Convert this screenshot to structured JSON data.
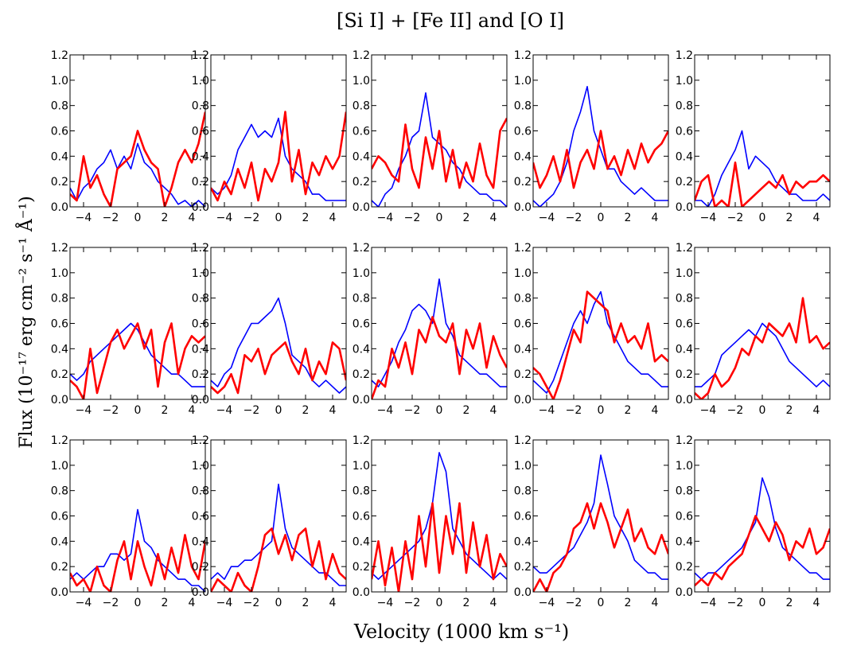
{
  "figure": {
    "title": "[Si I] + [Fe II] and [O I]",
    "xlabel": "Velocity (1000 km s⁻¹)",
    "ylabel": "Flux (10⁻¹⁷ erg cm⁻² s⁻¹ Å⁻¹)"
  },
  "chart_data": {
    "type": "line",
    "layout": "3 rows x 5 columns grid of panels",
    "xlim": [
      -5,
      5
    ],
    "ylim": [
      0,
      1.2
    ],
    "xticks": [
      -4,
      -2,
      0,
      2,
      4
    ],
    "yticks": [
      0.0,
      0.2,
      0.4,
      0.6,
      0.8,
      1.0,
      1.2
    ],
    "x": [
      -5,
      -4.5,
      -4,
      -3.5,
      -3,
      -2.5,
      -2,
      -1.5,
      -1,
      -0.5,
      0,
      0.5,
      1,
      1.5,
      2,
      2.5,
      3,
      3.5,
      4,
      4.5,
      5
    ],
    "series_colors": {
      "blue": "#0000ff",
      "red": "#ff0000"
    },
    "panels": [
      {
        "row": 1,
        "col": 1,
        "series": [
          {
            "color": "blue",
            "values": [
              0.15,
              0.05,
              0.15,
              0.2,
              0.3,
              0.35,
              0.45,
              0.3,
              0.4,
              0.3,
              0.5,
              0.35,
              0.3,
              0.2,
              0.15,
              0.1,
              0.02,
              0.05,
              0.0,
              0.05,
              0.0
            ]
          },
          {
            "color": "red",
            "values": [
              0.1,
              0.05,
              0.4,
              0.15,
              0.25,
              0.1,
              0.0,
              0.3,
              0.35,
              0.4,
              0.6,
              0.45,
              0.35,
              0.3,
              0.0,
              0.15,
              0.35,
              0.45,
              0.35,
              0.5,
              0.75
            ]
          }
        ]
      },
      {
        "row": 1,
        "col": 2,
        "series": [
          {
            "color": "blue",
            "values": [
              0.15,
              0.1,
              0.15,
              0.25,
              0.45,
              0.55,
              0.65,
              0.55,
              0.6,
              0.55,
              0.7,
              0.4,
              0.3,
              0.25,
              0.2,
              0.1,
              0.1,
              0.05,
              0.05,
              0.05,
              0.05
            ]
          },
          {
            "color": "red",
            "values": [
              0.15,
              0.05,
              0.2,
              0.1,
              0.3,
              0.15,
              0.35,
              0.05,
              0.3,
              0.2,
              0.35,
              0.75,
              0.2,
              0.45,
              0.1,
              0.35,
              0.25,
              0.4,
              0.3,
              0.4,
              0.75
            ]
          }
        ]
      },
      {
        "row": 1,
        "col": 3,
        "series": [
          {
            "color": "blue",
            "values": [
              0.05,
              0.0,
              0.1,
              0.15,
              0.3,
              0.4,
              0.55,
              0.6,
              0.9,
              0.55,
              0.5,
              0.45,
              0.35,
              0.3,
              0.2,
              0.15,
              0.1,
              0.1,
              0.05,
              0.05,
              0.0
            ]
          },
          {
            "color": "red",
            "values": [
              0.3,
              0.4,
              0.35,
              0.25,
              0.2,
              0.65,
              0.3,
              0.15,
              0.55,
              0.3,
              0.6,
              0.2,
              0.45,
              0.15,
              0.35,
              0.2,
              0.5,
              0.25,
              0.15,
              0.6,
              0.7
            ]
          }
        ]
      },
      {
        "row": 1,
        "col": 4,
        "series": [
          {
            "color": "blue",
            "values": [
              0.05,
              0.0,
              0.05,
              0.1,
              0.2,
              0.35,
              0.6,
              0.75,
              0.95,
              0.6,
              0.45,
              0.3,
              0.3,
              0.2,
              0.15,
              0.1,
              0.15,
              0.1,
              0.05,
              0.05,
              0.05
            ]
          },
          {
            "color": "red",
            "values": [
              0.35,
              0.15,
              0.25,
              0.4,
              0.2,
              0.45,
              0.15,
              0.35,
              0.45,
              0.3,
              0.6,
              0.3,
              0.4,
              0.25,
              0.45,
              0.3,
              0.5,
              0.35,
              0.45,
              0.5,
              0.6
            ]
          }
        ]
      },
      {
        "row": 1,
        "col": 5,
        "series": [
          {
            "color": "blue",
            "values": [
              0.05,
              0.05,
              0.0,
              0.1,
              0.25,
              0.35,
              0.45,
              0.6,
              0.3,
              0.4,
              0.35,
              0.3,
              0.2,
              0.15,
              0.1,
              0.1,
              0.05,
              0.05,
              0.05,
              0.1,
              0.05
            ]
          },
          {
            "color": "red",
            "values": [
              0.05,
              0.2,
              0.25,
              0.0,
              0.05,
              0.0,
              0.35,
              0.0,
              0.05,
              0.1,
              0.15,
              0.2,
              0.15,
              0.25,
              0.1,
              0.2,
              0.15,
              0.2,
              0.2,
              0.25,
              0.2
            ]
          }
        ]
      },
      {
        "row": 2,
        "col": 1,
        "series": [
          {
            "color": "blue",
            "values": [
              0.2,
              0.15,
              0.2,
              0.3,
              0.35,
              0.4,
              0.45,
              0.5,
              0.55,
              0.6,
              0.55,
              0.45,
              0.35,
              0.3,
              0.25,
              0.2,
              0.2,
              0.15,
              0.1,
              0.1,
              0.1
            ]
          },
          {
            "color": "red",
            "values": [
              0.15,
              0.1,
              0.0,
              0.4,
              0.05,
              0.25,
              0.45,
              0.55,
              0.4,
              0.5,
              0.6,
              0.4,
              0.55,
              0.1,
              0.45,
              0.6,
              0.2,
              0.4,
              0.5,
              0.45,
              0.5
            ]
          }
        ]
      },
      {
        "row": 2,
        "col": 2,
        "series": [
          {
            "color": "blue",
            "values": [
              0.15,
              0.1,
              0.2,
              0.25,
              0.4,
              0.5,
              0.6,
              0.6,
              0.65,
              0.7,
              0.8,
              0.6,
              0.35,
              0.3,
              0.25,
              0.15,
              0.1,
              0.15,
              0.1,
              0.05,
              0.1
            ]
          },
          {
            "color": "red",
            "values": [
              0.1,
              0.05,
              0.1,
              0.2,
              0.05,
              0.35,
              0.3,
              0.4,
              0.2,
              0.35,
              0.4,
              0.45,
              0.3,
              0.2,
              0.4,
              0.15,
              0.3,
              0.2,
              0.45,
              0.4,
              0.15
            ]
          }
        ]
      },
      {
        "row": 2,
        "col": 3,
        "series": [
          {
            "color": "blue",
            "values": [
              0.15,
              0.1,
              0.2,
              0.3,
              0.45,
              0.55,
              0.7,
              0.75,
              0.7,
              0.6,
              0.95,
              0.6,
              0.5,
              0.35,
              0.3,
              0.25,
              0.2,
              0.2,
              0.15,
              0.1,
              0.1
            ]
          },
          {
            "color": "red",
            "values": [
              0.0,
              0.15,
              0.1,
              0.4,
              0.25,
              0.45,
              0.2,
              0.55,
              0.45,
              0.65,
              0.5,
              0.45,
              0.6,
              0.2,
              0.55,
              0.4,
              0.6,
              0.25,
              0.5,
              0.35,
              0.25
            ]
          }
        ]
      },
      {
        "row": 2,
        "col": 4,
        "series": [
          {
            "color": "blue",
            "values": [
              0.15,
              0.1,
              0.05,
              0.15,
              0.3,
              0.45,
              0.6,
              0.7,
              0.6,
              0.75,
              0.85,
              0.6,
              0.5,
              0.4,
              0.3,
              0.25,
              0.2,
              0.2,
              0.15,
              0.1,
              0.1
            ]
          },
          {
            "color": "red",
            "values": [
              0.25,
              0.2,
              0.1,
              0.0,
              0.15,
              0.35,
              0.55,
              0.45,
              0.85,
              0.8,
              0.75,
              0.7,
              0.45,
              0.6,
              0.45,
              0.5,
              0.4,
              0.6,
              0.3,
              0.35,
              0.3
            ]
          }
        ]
      },
      {
        "row": 2,
        "col": 5,
        "series": [
          {
            "color": "blue",
            "values": [
              0.1,
              0.1,
              0.15,
              0.2,
              0.35,
              0.4,
              0.45,
              0.5,
              0.55,
              0.5,
              0.6,
              0.55,
              0.5,
              0.4,
              0.3,
              0.25,
              0.2,
              0.15,
              0.1,
              0.15,
              0.1
            ]
          },
          {
            "color": "red",
            "values": [
              0.05,
              0.0,
              0.05,
              0.2,
              0.1,
              0.15,
              0.25,
              0.4,
              0.35,
              0.5,
              0.45,
              0.6,
              0.55,
              0.5,
              0.6,
              0.45,
              0.8,
              0.45,
              0.5,
              0.4,
              0.45
            ]
          }
        ]
      },
      {
        "row": 3,
        "col": 1,
        "series": [
          {
            "color": "blue",
            "values": [
              0.1,
              0.15,
              0.1,
              0.15,
              0.2,
              0.2,
              0.3,
              0.3,
              0.25,
              0.3,
              0.65,
              0.4,
              0.35,
              0.25,
              0.2,
              0.15,
              0.1,
              0.1,
              0.05,
              0.05,
              0.0
            ]
          },
          {
            "color": "red",
            "values": [
              0.15,
              0.05,
              0.1,
              0.0,
              0.2,
              0.05,
              0.0,
              0.25,
              0.4,
              0.1,
              0.4,
              0.2,
              0.05,
              0.3,
              0.1,
              0.35,
              0.15,
              0.45,
              0.2,
              0.1,
              0.4
            ]
          }
        ]
      },
      {
        "row": 3,
        "col": 2,
        "series": [
          {
            "color": "blue",
            "values": [
              0.1,
              0.15,
              0.1,
              0.2,
              0.2,
              0.25,
              0.25,
              0.3,
              0.35,
              0.4,
              0.85,
              0.5,
              0.35,
              0.3,
              0.25,
              0.2,
              0.15,
              0.15,
              0.1,
              0.05,
              0.05
            ]
          },
          {
            "color": "red",
            "values": [
              0.0,
              0.1,
              0.05,
              0.0,
              0.15,
              0.05,
              0.0,
              0.2,
              0.45,
              0.5,
              0.3,
              0.45,
              0.25,
              0.45,
              0.5,
              0.2,
              0.4,
              0.1,
              0.3,
              0.15,
              0.1
            ]
          }
        ]
      },
      {
        "row": 3,
        "col": 3,
        "series": [
          {
            "color": "blue",
            "values": [
              0.15,
              0.1,
              0.15,
              0.2,
              0.25,
              0.3,
              0.35,
              0.4,
              0.5,
              0.7,
              1.1,
              0.95,
              0.5,
              0.4,
              0.3,
              0.25,
              0.2,
              0.15,
              0.1,
              0.15,
              0.1
            ]
          },
          {
            "color": "red",
            "values": [
              0.1,
              0.4,
              0.05,
              0.35,
              0.0,
              0.4,
              0.1,
              0.6,
              0.2,
              0.7,
              0.15,
              0.6,
              0.3,
              0.7,
              0.15,
              0.55,
              0.2,
              0.45,
              0.1,
              0.3,
              0.2
            ]
          }
        ]
      },
      {
        "row": 3,
        "col": 4,
        "series": [
          {
            "color": "blue",
            "values": [
              0.2,
              0.15,
              0.15,
              0.2,
              0.25,
              0.3,
              0.35,
              0.45,
              0.55,
              0.7,
              1.08,
              0.85,
              0.6,
              0.5,
              0.4,
              0.25,
              0.2,
              0.15,
              0.15,
              0.1,
              0.1
            ]
          },
          {
            "color": "red",
            "values": [
              0.0,
              0.1,
              0.0,
              0.15,
              0.2,
              0.3,
              0.5,
              0.55,
              0.7,
              0.5,
              0.7,
              0.55,
              0.35,
              0.5,
              0.65,
              0.4,
              0.5,
              0.35,
              0.3,
              0.45,
              0.3
            ]
          }
        ]
      },
      {
        "row": 3,
        "col": 5,
        "series": [
          {
            "color": "blue",
            "values": [
              0.15,
              0.1,
              0.15,
              0.15,
              0.2,
              0.25,
              0.3,
              0.35,
              0.45,
              0.55,
              0.9,
              0.75,
              0.5,
              0.35,
              0.3,
              0.25,
              0.2,
              0.15,
              0.15,
              0.1,
              0.1
            ]
          },
          {
            "color": "red",
            "values": [
              0.05,
              0.1,
              0.05,
              0.15,
              0.1,
              0.2,
              0.25,
              0.3,
              0.45,
              0.6,
              0.5,
              0.4,
              0.55,
              0.45,
              0.25,
              0.4,
              0.35,
              0.5,
              0.3,
              0.35,
              0.5
            ]
          }
        ]
      }
    ]
  }
}
